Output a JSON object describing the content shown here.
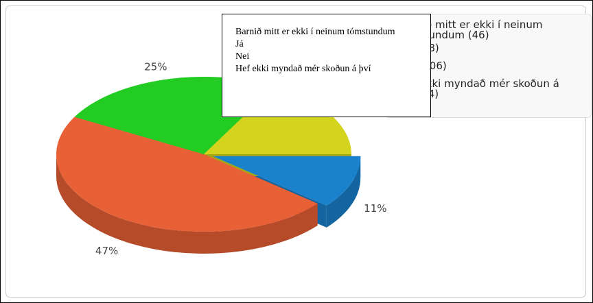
{
  "chart_data": {
    "type": "pie3d",
    "categories": [
      "Barnið mitt er ekki í neinum tómstundum",
      "Já",
      "Nei",
      "Hef ekki myndað mér skoðun á því"
    ],
    "values": [
      11,
      47,
      25,
      17
    ],
    "value_labels": [
      "11%",
      "47%",
      "25%",
      null
    ],
    "colors": [
      "#1a82cc",
      "#e86035",
      "#22cc22",
      "#d4d41e"
    ],
    "legend_labels": [
      "Barnið mitt er ekki í neinum tómstundum (46)",
      "Já (198)",
      "Nei (106)",
      "Hef ekki myndað mér skoðun á því (74)"
    ],
    "exploded": [
      0
    ],
    "tooltip_lines": [
      "Barnið mitt er ekki í neinum tómstundum",
      "Já",
      "Nei",
      "Hef ekki myndað mér skoðun á því"
    ]
  }
}
